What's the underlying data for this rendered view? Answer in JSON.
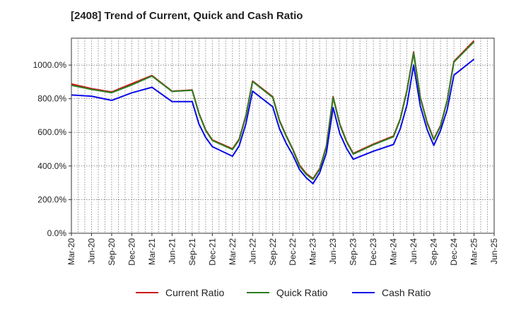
{
  "chart_data": {
    "type": "line",
    "title": "[2408]  Trend of Current, Quick and Cash Ratio",
    "xlabel": "",
    "ylabel": "",
    "ylim": [
      0,
      1160
    ],
    "yticks": [
      0,
      200,
      400,
      600,
      800,
      1000
    ],
    "ytick_labels": [
      "0.0%",
      "200.0%",
      "400.0%",
      "600.0%",
      "800.0%",
      "1000.0%"
    ],
    "grid": true,
    "legend_position": "bottom",
    "x_tick_labels": [
      "Mar-20",
      "Jun-20",
      "Sep-20",
      "Dec-20",
      "Mar-21",
      "Jun-21",
      "Sep-21",
      "Dec-21",
      "Mar-22",
      "Jun-22",
      "Sep-22",
      "Dec-22",
      "Mar-23",
      "Jun-23",
      "Sep-23",
      "Dec-23",
      "Mar-24",
      "Jun-24",
      "Sep-24",
      "Dec-24",
      "Mar-25",
      "Jun-25"
    ],
    "months": [
      "Mar-20",
      "Apr-20",
      "May-20",
      "Jun-20",
      "Jul-20",
      "Aug-20",
      "Sep-20",
      "Oct-20",
      "Nov-20",
      "Dec-20",
      "Jan-21",
      "Feb-21",
      "Mar-21",
      "Apr-21",
      "May-21",
      "Jun-21",
      "Jul-21",
      "Aug-21",
      "Sep-21",
      "Oct-21",
      "Nov-21",
      "Dec-21",
      "Jan-22",
      "Feb-22",
      "Mar-22",
      "Apr-22",
      "May-22",
      "Jun-22",
      "Jul-22",
      "Aug-22",
      "Sep-22",
      "Oct-22",
      "Nov-22",
      "Dec-22",
      "Jan-23",
      "Feb-23",
      "Mar-23",
      "Apr-23",
      "May-23",
      "Jun-23",
      "Jul-23",
      "Aug-23",
      "Sep-23",
      "Oct-23",
      "Nov-23",
      "Dec-23",
      "Jan-24",
      "Feb-24",
      "Mar-24",
      "Apr-24",
      "May-24",
      "Jun-24",
      "Jul-24",
      "Aug-24",
      "Sep-24",
      "Oct-24",
      "Nov-24",
      "Dec-24",
      "Jan-25",
      "Feb-25",
      "Mar-25",
      "Apr-25",
      "May-25",
      "Jun-25"
    ],
    "series": [
      {
        "name": "Current Ratio",
        "color": "#cc1a1a",
        "points": [
          [
            "Mar-20",
            888
          ],
          [
            "Jun-20",
            860
          ],
          [
            "Sep-20",
            840
          ],
          [
            "Dec-20",
            890
          ],
          [
            "Mar-21",
            938
          ],
          [
            "Jun-21",
            845
          ],
          [
            "Sep-21",
            852
          ],
          [
            "Oct-21",
            715
          ],
          [
            "Nov-21",
            615
          ],
          [
            "Dec-21",
            555
          ],
          [
            "Mar-22",
            502
          ],
          [
            "Apr-22",
            560
          ],
          [
            "May-22",
            700
          ],
          [
            "Jun-22",
            905
          ],
          [
            "Sep-22",
            812
          ],
          [
            "Oct-22",
            672
          ],
          [
            "Nov-22",
            582
          ],
          [
            "Dec-22",
            500
          ],
          [
            "Jan-23",
            405
          ],
          [
            "Feb-23",
            355
          ],
          [
            "Mar-23",
            325
          ],
          [
            "Apr-23",
            385
          ],
          [
            "May-23",
            520
          ],
          [
            "Jun-23",
            812
          ],
          [
            "Jul-23",
            650
          ],
          [
            "Aug-23",
            548
          ],
          [
            "Sep-23",
            475
          ],
          [
            "Dec-23",
            530
          ],
          [
            "Mar-24",
            578
          ],
          [
            "Apr-24",
            680
          ],
          [
            "May-24",
            850
          ],
          [
            "Jun-24",
            1078
          ],
          [
            "Jul-24",
            808
          ],
          [
            "Aug-24",
            662
          ],
          [
            "Sep-24",
            560
          ],
          [
            "Oct-24",
            640
          ],
          [
            "Nov-24",
            790
          ],
          [
            "Dec-24",
            1022
          ],
          [
            "Mar-25",
            1145
          ]
        ]
      },
      {
        "name": "Quick Ratio",
        "color": "#2e7d1f",
        "points": [
          [
            "Mar-20",
            880
          ],
          [
            "Jun-20",
            855
          ],
          [
            "Sep-20",
            836
          ],
          [
            "Dec-20",
            882
          ],
          [
            "Mar-21",
            935
          ],
          [
            "Jun-21",
            843
          ],
          [
            "Sep-21",
            850
          ],
          [
            "Oct-21",
            712
          ],
          [
            "Nov-21",
            612
          ],
          [
            "Dec-21",
            552
          ],
          [
            "Mar-22",
            498
          ],
          [
            "Apr-22",
            555
          ],
          [
            "May-22",
            695
          ],
          [
            "Jun-22",
            902
          ],
          [
            "Sep-22",
            808
          ],
          [
            "Oct-22",
            668
          ],
          [
            "Nov-22",
            578
          ],
          [
            "Dec-22",
            496
          ],
          [
            "Jan-23",
            400
          ],
          [
            "Feb-23",
            350
          ],
          [
            "Mar-23",
            320
          ],
          [
            "Apr-23",
            380
          ],
          [
            "May-23",
            515
          ],
          [
            "Jun-23",
            808
          ],
          [
            "Jul-23",
            645
          ],
          [
            "Aug-23",
            544
          ],
          [
            "Sep-23",
            471
          ],
          [
            "Dec-23",
            526
          ],
          [
            "Mar-24",
            574
          ],
          [
            "Apr-24",
            676
          ],
          [
            "May-24",
            845
          ],
          [
            "Jun-24",
            1072
          ],
          [
            "Jul-24",
            803
          ],
          [
            "Aug-24",
            657
          ],
          [
            "Sep-24",
            556
          ],
          [
            "Oct-24",
            636
          ],
          [
            "Nov-24",
            786
          ],
          [
            "Dec-24",
            1018
          ],
          [
            "Mar-25",
            1138
          ]
        ]
      },
      {
        "name": "Cash Ratio",
        "color": "#0a0ae6",
        "points": [
          [
            "Mar-20",
            822
          ],
          [
            "Jun-20",
            815
          ],
          [
            "Sep-20",
            790
          ],
          [
            "Dec-20",
            835
          ],
          [
            "Mar-21",
            868
          ],
          [
            "Jun-21",
            783
          ],
          [
            "Sep-21",
            783
          ],
          [
            "Oct-21",
            650
          ],
          [
            "Nov-21",
            570
          ],
          [
            "Dec-21",
            515
          ],
          [
            "Mar-22",
            458
          ],
          [
            "Apr-22",
            520
          ],
          [
            "May-22",
            650
          ],
          [
            "Jun-22",
            845
          ],
          [
            "Sep-22",
            752
          ],
          [
            "Oct-22",
            622
          ],
          [
            "Nov-22",
            535
          ],
          [
            "Dec-22",
            465
          ],
          [
            "Jan-23",
            378
          ],
          [
            "Feb-23",
            330
          ],
          [
            "Mar-23",
            295
          ],
          [
            "Apr-23",
            360
          ],
          [
            "May-23",
            478
          ],
          [
            "Jun-23",
            748
          ],
          [
            "Jul-23",
            592
          ],
          [
            "Aug-23",
            505
          ],
          [
            "Sep-23",
            440
          ],
          [
            "Dec-23",
            488
          ],
          [
            "Mar-24",
            528
          ],
          [
            "Apr-24",
            620
          ],
          [
            "May-24",
            762
          ],
          [
            "Jun-24",
            1000
          ],
          [
            "Jul-24",
            755
          ],
          [
            "Aug-24",
            618
          ],
          [
            "Sep-24",
            522
          ],
          [
            "Oct-24",
            610
          ],
          [
            "Nov-24",
            735
          ],
          [
            "Dec-24",
            940
          ],
          [
            "Mar-25",
            1035
          ]
        ]
      }
    ]
  }
}
